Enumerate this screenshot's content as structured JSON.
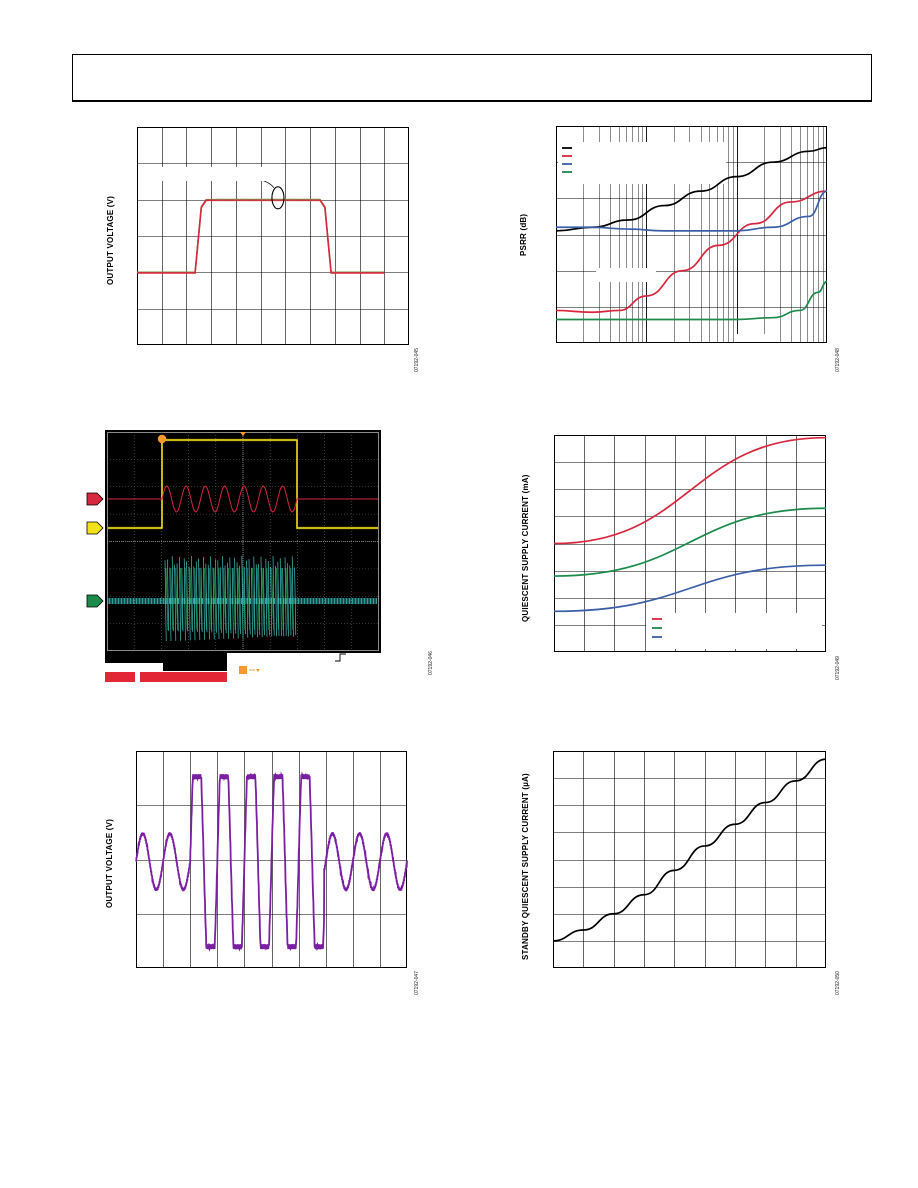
{
  "page": {
    "colors": {
      "black": "#000000",
      "red": "#d7263d",
      "green": "#1b8a4a",
      "blue": "#3b5ea8",
      "purple": "#7b1fa2"
    }
  },
  "chart_data": [
    {
      "id": "pulse",
      "type": "line",
      "ylabel": "OUTPUT VOLTAGE (V)",
      "figure_id": "07192-045",
      "grid": true,
      "series": [
        {
          "color": "#7a9a4a",
          "x": [
            0,
            2.35,
            2.6,
            2.8,
            7.4,
            7.6,
            7.85,
            10
          ],
          "y": [
            2.0,
            2.0,
            3.8,
            4.0,
            4.0,
            3.8,
            2.0,
            2.0
          ]
        },
        {
          "color": "#d7263d",
          "x": [
            0,
            2.35,
            2.6,
            2.8,
            7.4,
            7.6,
            7.85,
            10
          ],
          "y": [
            2.0,
            2.0,
            3.8,
            4.0,
            4.0,
            3.8,
            2.0,
            2.0
          ]
        }
      ],
      "xlim": [
        0,
        11
      ],
      "ylim": [
        0,
        6
      ],
      "annotation_ellipse": {
        "x": 5.7,
        "y": 4.05
      }
    },
    {
      "id": "psrr",
      "type": "line",
      "ylabel": "PSRR (dB)",
      "figure_id": "07192-048",
      "grid": true,
      "log_x": true,
      "xlim": [
        0,
        3
      ],
      "ylim": [
        0,
        6
      ],
      "series": [
        {
          "color": "#000000",
          "x": [
            0,
            0.4,
            0.8,
            1.2,
            1.6,
            2.0,
            2.4,
            2.8,
            3.0
          ],
          "y": [
            3.1,
            3.2,
            3.4,
            3.8,
            4.2,
            4.6,
            5.0,
            5.3,
            5.4
          ]
        },
        {
          "color": "#d7263d",
          "x": [
            0,
            0.4,
            0.7,
            1.0,
            1.4,
            1.8,
            2.2,
            2.6,
            3.0
          ],
          "y": [
            0.9,
            0.85,
            0.9,
            1.3,
            2.0,
            2.7,
            3.3,
            3.9,
            4.2
          ]
        },
        {
          "color": "#3b5ea8",
          "x": [
            0,
            0.4,
            0.8,
            1.2,
            1.6,
            2.0,
            2.4,
            2.8,
            3.0
          ],
          "y": [
            3.2,
            3.2,
            3.15,
            3.1,
            3.1,
            3.1,
            3.2,
            3.5,
            4.2
          ]
        },
        {
          "color": "#1b8a4a",
          "x": [
            0,
            0.4,
            0.8,
            1.2,
            1.6,
            2.0,
            2.4,
            2.7,
            2.9,
            3.0
          ],
          "y": [
            0.65,
            0.65,
            0.65,
            0.65,
            0.65,
            0.65,
            0.7,
            0.9,
            1.4,
            1.7
          ]
        }
      ]
    },
    {
      "id": "scope",
      "type": "line",
      "figure_id": "07192-046",
      "grid": true,
      "xlim": [
        0,
        10
      ],
      "ylim": [
        0,
        8
      ],
      "channels": [
        {
          "marker": "red",
          "color": "#d7263d",
          "level": 5.0
        },
        {
          "marker": "yellow",
          "color": "#f2e21c",
          "level": 4.1
        },
        {
          "marker": "green",
          "color": "#1b8a4a",
          "level": 1.0
        }
      ],
      "trigger_color": "#f79a2a"
    },
    {
      "id": "quiescent",
      "type": "line",
      "ylabel": "QUIESCENT SUPPLY CURRENT (mA)",
      "figure_id": "07192-049",
      "grid": true,
      "xlim": [
        0,
        9
      ],
      "ylim": [
        0,
        8
      ],
      "series": [
        {
          "color": "#d7263d",
          "x": [
            0,
            9
          ],
          "y": [
            4.0,
            7.9
          ]
        },
        {
          "color": "#1b8a4a",
          "x": [
            0,
            9
          ],
          "y": [
            2.8,
            5.3
          ]
        },
        {
          "color": "#3b5ea8",
          "x": [
            0,
            9
          ],
          "y": [
            1.5,
            3.2
          ]
        }
      ]
    },
    {
      "id": "burst",
      "type": "line",
      "ylabel": "OUTPUT VOLTAGE (V)",
      "figure_id": "07192-047",
      "grid": true,
      "xlim": [
        0,
        10
      ],
      "ylim": [
        0,
        4
      ]
    },
    {
      "id": "standby",
      "type": "line",
      "ylabel": "STANDBY QUIESCENT SUPPLY CURRENT (µA)",
      "figure_id": "07192-050",
      "grid": true,
      "xlim": [
        0,
        9
      ],
      "ylim": [
        0,
        8
      ],
      "series": [
        {
          "color": "#000000",
          "x": [
            0,
            1,
            2,
            3,
            4,
            5,
            6,
            7,
            8,
            9
          ],
          "y": [
            1.0,
            1.4,
            2.0,
            2.7,
            3.6,
            4.5,
            5.3,
            6.1,
            6.9,
            7.7
          ]
        }
      ]
    }
  ]
}
